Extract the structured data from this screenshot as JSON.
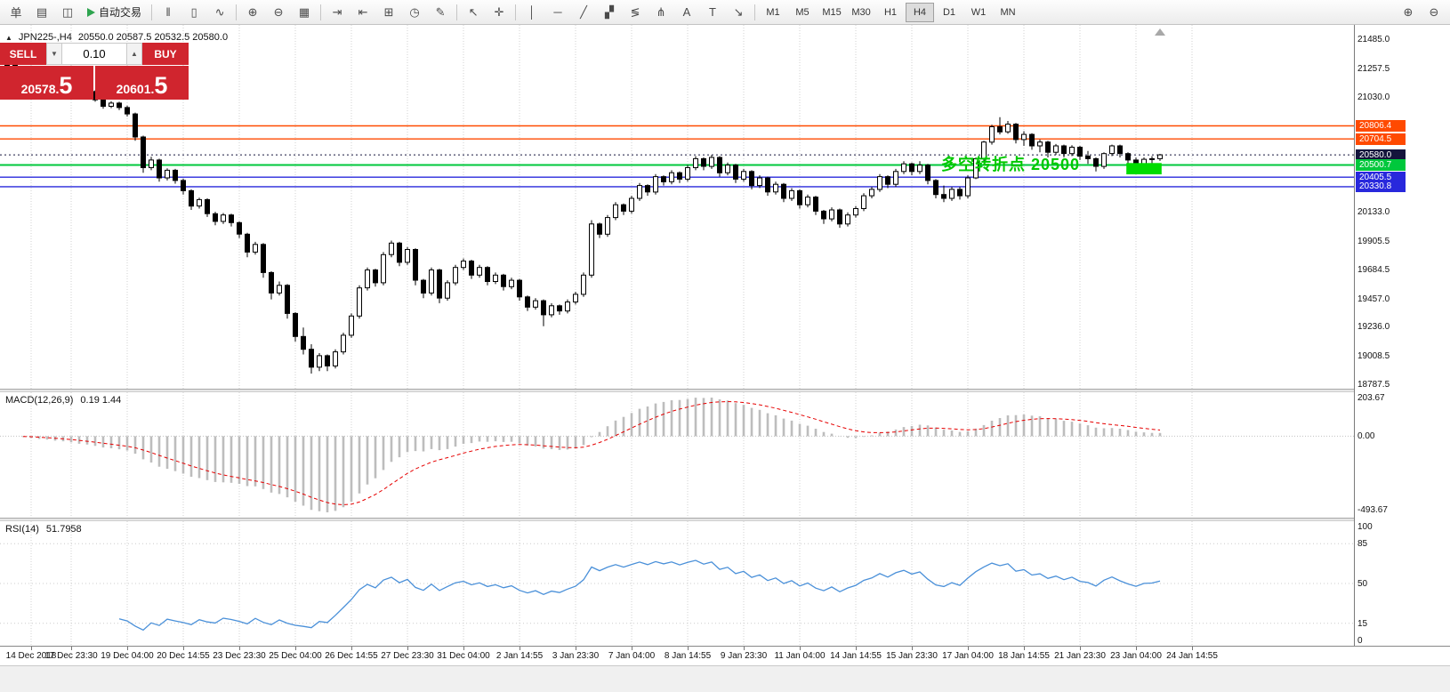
{
  "toolbar": {
    "autotrading_label": "自动交易",
    "left_icons": [
      {
        "name": "new-order-icon",
        "glyph": "单"
      },
      {
        "name": "charts-window-icon",
        "glyph": "▤"
      },
      {
        "name": "profiles-icon",
        "glyph": "◫"
      }
    ],
    "mid_icons": [
      {
        "sep": true
      },
      {
        "name": "bar-chart-type-icon",
        "glyph": "‖"
      },
      {
        "name": "candle-chart-type-icon",
        "glyph": "▯"
      },
      {
        "name": "line-chart-type-icon",
        "glyph": "∿"
      },
      {
        "sep": true
      },
      {
        "name": "zoom-in-icon",
        "glyph": "⊕"
      },
      {
        "name": "zoom-out-icon",
        "glyph": "⊖"
      },
      {
        "name": "tile-windows-icon",
        "glyph": "▦"
      },
      {
        "sep": true
      },
      {
        "name": "auto-scroll-icon",
        "glyph": "⇥"
      },
      {
        "name": "chart-shift-icon",
        "glyph": "⇤"
      },
      {
        "name": "new-chart-icon",
        "glyph": "⊞"
      },
      {
        "name": "period-clock-icon",
        "glyph": "◷"
      },
      {
        "name": "templates-icon",
        "glyph": "✎"
      },
      {
        "sep": true
      },
      {
        "name": "cursor-icon",
        "glyph": "↖"
      },
      {
        "name": "crosshair-icon",
        "glyph": "✛"
      },
      {
        "sep": true
      },
      {
        "name": "vertical-line-icon",
        "glyph": "│"
      },
      {
        "name": "horizontal-line-icon",
        "glyph": "─"
      },
      {
        "name": "trendline-icon",
        "glyph": "╱"
      },
      {
        "name": "equidistant-channel-icon",
        "glyph": "▞"
      },
      {
        "name": "fibonacci-icon",
        "glyph": "≶"
      },
      {
        "name": "andrews-pitchfork-icon",
        "glyph": "⋔"
      },
      {
        "name": "text-icon",
        "glyph": "A"
      },
      {
        "name": "text-label-icon",
        "glyph": "T"
      },
      {
        "name": "arrow-objects-icon",
        "glyph": "↘"
      },
      {
        "sep": true
      }
    ],
    "timeframes": [
      "M1",
      "M5",
      "M15",
      "M30",
      "H1",
      "H4",
      "D1",
      "W1",
      "MN"
    ],
    "active_timeframe": "H4",
    "right_icons": [
      {
        "name": "magnifier-plus-icon",
        "glyph": "⊕"
      },
      {
        "name": "magnifier-minus-icon",
        "glyph": "⊖"
      }
    ]
  },
  "chart_header": {
    "collapse_icon": "▲",
    "symbol": "JPN225-,H4",
    "ohlc": "20550.0 20587.5 20532.5 20580.0"
  },
  "quote_panel": {
    "sell_label": "SELL",
    "buy_label": "BUY",
    "volume": "0.10",
    "caret_down": "▼",
    "caret_up": "▲",
    "sell_price": "20578.",
    "sell_price_big": "5",
    "buy_price": "20601.",
    "buy_price_big": "5",
    "color": "#d0252e"
  },
  "annotation": {
    "text": "多空转折点 20500",
    "color": "#00c800"
  },
  "indicators": {
    "macd": {
      "title": "MACD(12,26,9)",
      "values": "0.19 1.44",
      "axis_top": "203.67",
      "axis_zero": "0.00",
      "axis_bottom": "-493.67",
      "histogram_color": "#bdbdbd",
      "signal_color": "#e60000"
    },
    "rsi": {
      "title": "RSI(14)",
      "value": "51.7958",
      "axis_labels": [
        "100",
        "85",
        "50",
        "15",
        "0"
      ],
      "line_color": "#4a90d9"
    }
  },
  "chart_data": {
    "type": "candlestick",
    "symbol": "JPN225-",
    "timeframe": "H4",
    "ohlc_display": {
      "open": "20550.0",
      "high": "20587.5",
      "low": "20532.5",
      "close": "20580.0"
    },
    "y_axis_labels": [
      "21485.0",
      "21257.5",
      "21030.0",
      "20133.0",
      "19905.5",
      "19684.5",
      "19457.0",
      "19236.0",
      "19008.5",
      "18787.5"
    ],
    "x_axis_labels": [
      {
        "t": "14 Dec 2018",
        "i": 3
      },
      {
        "t": "17 Dec 23:30",
        "i": 8
      },
      {
        "t": "19 Dec 04:00",
        "i": 15
      },
      {
        "t": "20 Dec 14:55",
        "i": 22
      },
      {
        "t": "23 Dec 23:30",
        "i": 29
      },
      {
        "t": "25 Dec 04:00",
        "i": 36
      },
      {
        "t": "26 Dec 14:55",
        "i": 43
      },
      {
        "t": "27 Dec 23:30",
        "i": 50
      },
      {
        "t": "31 Dec 04:00",
        "i": 57
      },
      {
        "t": "2 Jan 14:55",
        "i": 64
      },
      {
        "t": "3 Jan 23:30",
        "i": 71
      },
      {
        "t": "7 Jan 04:00",
        "i": 78
      },
      {
        "t": "8 Jan 14:55",
        "i": 85
      },
      {
        "t": "9 Jan 23:30",
        "i": 92
      },
      {
        "t": "11 Jan 04:00",
        "i": 99
      },
      {
        "t": "14 Jan 14:55",
        "i": 106
      },
      {
        "t": "15 Jan 23:30",
        "i": 113
      },
      {
        "t": "17 Jan 04:00",
        "i": 120
      },
      {
        "t": "18 Jan 14:55",
        "i": 127
      },
      {
        "t": "21 Jan 23:30",
        "i": 134
      },
      {
        "t": "23 Jan 04:00",
        "i": 141
      },
      {
        "t": "24 Jan 14:55",
        "i": 148
      }
    ],
    "price_lines": [
      {
        "price": 20806.4,
        "label": "20806.4",
        "color": "#ff4a00",
        "style": "solid",
        "width": 1.4
      },
      {
        "price": 20704.5,
        "label": "20704.5",
        "color": "#ff4a00",
        "style": "solid",
        "width": 1.4
      },
      {
        "price": 20580.0,
        "label": "20580.0",
        "color": "#14143c",
        "style": "dotted",
        "width": 1
      },
      {
        "price": 20500.7,
        "label": "20500.7",
        "color": "#00c83c",
        "style": "solid",
        "width": 2
      },
      {
        "price": 20405.5,
        "label": "20405.5",
        "color": "#2828dc",
        "style": "solid",
        "width": 1.4
      },
      {
        "price": 20330.8,
        "label": "20330.8",
        "color": "#2828dc",
        "style": "solid",
        "width": 1.4
      }
    ],
    "highlight_box": {
      "i1": 139.8,
      "i2": 144.2,
      "p1": 20516,
      "p2": 20428,
      "color": "#00dc00"
    },
    "candles": [
      [
        21300,
        21310,
        21260,
        21280
      ],
      [
        21280,
        21290,
        21210,
        21230
      ],
      [
        21230,
        21270,
        21215,
        21255
      ],
      [
        21255,
        21265,
        21185,
        21200
      ],
      [
        21200,
        21215,
        21150,
        21170
      ],
      [
        21170,
        21200,
        21155,
        21185
      ],
      [
        21185,
        21195,
        21120,
        21140
      ],
      [
        21140,
        21165,
        21125,
        21150
      ],
      [
        21150,
        21160,
        21080,
        21100
      ],
      [
        21100,
        21115,
        21030,
        21050
      ],
      [
        21050,
        21090,
        21035,
        21075
      ],
      [
        21075,
        21085,
        20995,
        21010
      ],
      [
        21010,
        21025,
        20940,
        20960
      ],
      [
        20960,
        21000,
        20945,
        20985
      ],
      [
        20985,
        20995,
        20930,
        20950
      ],
      [
        20950,
        20965,
        20880,
        20900
      ],
      [
        20900,
        20910,
        20690,
        20720
      ],
      [
        20720,
        20730,
        20440,
        20480
      ],
      [
        20480,
        20565,
        20460,
        20540
      ],
      [
        20540,
        20550,
        20370,
        20400
      ],
      [
        20400,
        20475,
        20380,
        20460
      ],
      [
        20460,
        20470,
        20355,
        20380
      ],
      [
        20380,
        20395,
        20270,
        20300
      ],
      [
        20300,
        20310,
        20150,
        20180
      ],
      [
        20180,
        20245,
        20160,
        20230
      ],
      [
        20230,
        20240,
        20095,
        20120
      ],
      [
        20120,
        20135,
        20030,
        20060
      ],
      [
        20060,
        20125,
        20040,
        20110
      ],
      [
        20110,
        20120,
        20020,
        20050
      ],
      [
        20050,
        20060,
        19930,
        19960
      ],
      [
        19960,
        19970,
        19780,
        19820
      ],
      [
        19820,
        19900,
        19800,
        19880
      ],
      [
        19880,
        19890,
        19620,
        19660
      ],
      [
        19660,
        19670,
        19450,
        19500
      ],
      [
        19500,
        19590,
        19480,
        19560
      ],
      [
        19560,
        19570,
        19300,
        19340
      ],
      [
        19340,
        19350,
        19120,
        19160
      ],
      [
        19160,
        19230,
        19020,
        19060
      ],
      [
        19060,
        19100,
        18870,
        18920
      ],
      [
        18920,
        19030,
        18890,
        19010
      ],
      [
        19010,
        19020,
        18890,
        18930
      ],
      [
        18930,
        19060,
        18910,
        19040
      ],
      [
        19040,
        19190,
        19020,
        19170
      ],
      [
        19170,
        19340,
        19150,
        19320
      ],
      [
        19320,
        19560,
        19300,
        19540
      ],
      [
        19540,
        19700,
        19520,
        19680
      ],
      [
        19680,
        19690,
        19550,
        19580
      ],
      [
        19580,
        19820,
        19560,
        19800
      ],
      [
        19800,
        19910,
        19780,
        19890
      ],
      [
        19890,
        19900,
        19710,
        19740
      ],
      [
        19740,
        19860,
        19720,
        19840
      ],
      [
        19840,
        19850,
        19560,
        19600
      ],
      [
        19600,
        19610,
        19460,
        19500
      ],
      [
        19500,
        19700,
        19480,
        19680
      ],
      [
        19680,
        19690,
        19420,
        19460
      ],
      [
        19460,
        19600,
        19440,
        19580
      ],
      [
        19580,
        19720,
        19560,
        19700
      ],
      [
        19700,
        19770,
        19680,
        19750
      ],
      [
        19750,
        19760,
        19610,
        19640
      ],
      [
        19640,
        19720,
        19620,
        19700
      ],
      [
        19700,
        19710,
        19560,
        19590
      ],
      [
        19590,
        19660,
        19570,
        19640
      ],
      [
        19640,
        19650,
        19520,
        19550
      ],
      [
        19550,
        19620,
        19530,
        19600
      ],
      [
        19600,
        19610,
        19440,
        19470
      ],
      [
        19470,
        19480,
        19360,
        19390
      ],
      [
        19390,
        19460,
        19370,
        19440
      ],
      [
        19440,
        19450,
        19240,
        19330
      ],
      [
        19330,
        19420,
        19310,
        19400
      ],
      [
        19400,
        19410,
        19330,
        19360
      ],
      [
        19360,
        19450,
        19340,
        19430
      ],
      [
        19430,
        19510,
        19410,
        19490
      ],
      [
        19490,
        19660,
        19470,
        19640
      ],
      [
        19640,
        20070,
        19620,
        20040
      ],
      [
        20040,
        20050,
        19930,
        19960
      ],
      [
        19960,
        20110,
        19940,
        20090
      ],
      [
        20090,
        20210,
        20070,
        20190
      ],
      [
        20190,
        20200,
        20110,
        20140
      ],
      [
        20140,
        20260,
        20120,
        20240
      ],
      [
        20240,
        20360,
        20220,
        20340
      ],
      [
        20340,
        20350,
        20260,
        20290
      ],
      [
        20290,
        20430,
        20270,
        20410
      ],
      [
        20410,
        20420,
        20340,
        20370
      ],
      [
        20370,
        20460,
        20350,
        20440
      ],
      [
        20440,
        20450,
        20360,
        20390
      ],
      [
        20390,
        20500,
        20370,
        20480
      ],
      [
        20480,
        20570,
        20460,
        20550
      ],
      [
        20550,
        20560,
        20460,
        20490
      ],
      [
        20490,
        20580,
        20470,
        20560
      ],
      [
        20560,
        20570,
        20410,
        20440
      ],
      [
        20440,
        20520,
        20420,
        20500
      ],
      [
        20500,
        20510,
        20360,
        20390
      ],
      [
        20390,
        20470,
        20370,
        20450
      ],
      [
        20450,
        20460,
        20310,
        20340
      ],
      [
        20340,
        20420,
        20320,
        20400
      ],
      [
        20400,
        20410,
        20260,
        20290
      ],
      [
        20290,
        20370,
        20270,
        20350
      ],
      [
        20350,
        20360,
        20210,
        20240
      ],
      [
        20240,
        20320,
        20220,
        20300
      ],
      [
        20300,
        20310,
        20160,
        20190
      ],
      [
        20190,
        20270,
        20170,
        20250
      ],
      [
        20250,
        20260,
        20110,
        20140
      ],
      [
        20140,
        20150,
        20040,
        20080
      ],
      [
        20080,
        20170,
        20060,
        20150
      ],
      [
        20150,
        20160,
        20010,
        20040
      ],
      [
        20040,
        20130,
        20020,
        20110
      ],
      [
        20110,
        20180,
        20090,
        20160
      ],
      [
        20160,
        20280,
        20140,
        20260
      ],
      [
        20260,
        20330,
        20240,
        20310
      ],
      [
        20310,
        20430,
        20290,
        20410
      ],
      [
        20410,
        20420,
        20320,
        20350
      ],
      [
        20350,
        20470,
        20330,
        20450
      ],
      [
        20450,
        20530,
        20430,
        20510
      ],
      [
        20510,
        20520,
        20420,
        20450
      ],
      [
        20450,
        20530,
        20430,
        20500
      ],
      [
        20500,
        20510,
        20350,
        20380
      ],
      [
        20380,
        20390,
        20240,
        20270
      ],
      [
        20270,
        20340,
        20210,
        20240
      ],
      [
        20240,
        20330,
        20220,
        20310
      ],
      [
        20310,
        20330,
        20230,
        20260
      ],
      [
        20260,
        20420,
        20240,
        20400
      ],
      [
        20400,
        20560,
        20390,
        20550
      ],
      [
        20550,
        20690,
        20530,
        20680
      ],
      [
        20680,
        20815,
        20660,
        20800
      ],
      [
        20800,
        20875,
        20740,
        20760
      ],
      [
        20760,
        20845,
        20745,
        20820
      ],
      [
        20820,
        20830,
        20670,
        20700
      ],
      [
        20700,
        20765,
        20650,
        20740
      ],
      [
        20740,
        20750,
        20620,
        20650
      ],
      [
        20650,
        20700,
        20600,
        20680
      ],
      [
        20680,
        20690,
        20560,
        20600
      ],
      [
        20600,
        20665,
        20580,
        20650
      ],
      [
        20650,
        20660,
        20560,
        20590
      ],
      [
        20590,
        20655,
        20570,
        20640
      ],
      [
        20640,
        20650,
        20540,
        20570
      ],
      [
        20570,
        20610,
        20510,
        20550
      ],
      [
        20550,
        20560,
        20450,
        20490
      ],
      [
        20490,
        20600,
        20470,
        20590
      ],
      [
        20590,
        20660,
        20570,
        20650
      ],
      [
        20650,
        20660,
        20560,
        20590
      ],
      [
        20590,
        20600,
        20500,
        20540
      ],
      [
        20540,
        20560,
        20450,
        20500
      ],
      [
        20500,
        20560,
        20480,
        20545
      ],
      [
        20545,
        20570,
        20500,
        20550
      ],
      [
        20550,
        20587.5,
        20532.5,
        20580
      ]
    ]
  }
}
